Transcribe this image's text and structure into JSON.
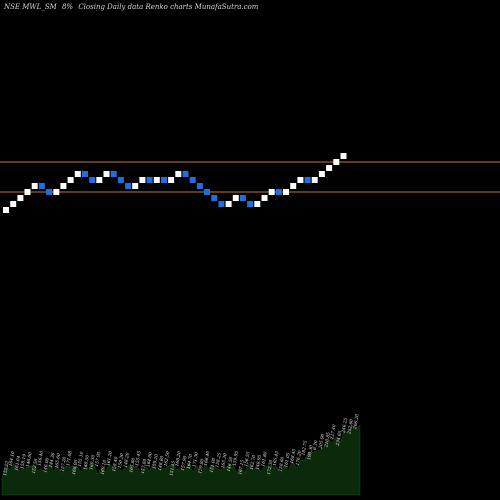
{
  "header": {
    "symbol": "NSE MWL_SM",
    "brick_size": "8%",
    "description": "Closing Daily data  Renko  charts MunafaSutra.com"
  },
  "colors": {
    "background": "#000000",
    "up_brick": "#ffffff",
    "down_brick": "#1f6fe0",
    "level_line": "#c8781e",
    "volume_fill": "#0b2a0b"
  },
  "chart_data": {
    "type": "renko",
    "direction_sequence": [
      "up",
      "up",
      "up",
      "up",
      "up",
      "down",
      "down",
      "up",
      "up",
      "up",
      "up",
      "down",
      "down",
      "up",
      "up",
      "down",
      "down",
      "down",
      "up",
      "up",
      "down",
      "up",
      "down",
      "up",
      "up",
      "down",
      "down",
      "down",
      "down",
      "down",
      "down",
      "up",
      "up",
      "down",
      "down",
      "up",
      "up",
      "up",
      "down",
      "up",
      "up",
      "up",
      "down",
      "up",
      "up",
      "up",
      "up",
      "up"
    ],
    "level_lines": [
      "upper",
      "lower"
    ],
    "volume_labels": [
      "152.22",
      "164.10",
      "161.04",
      "158.19",
      "146.00",
      "152.56",
      "156.40",
      "146.00",
      "144.36",
      "165.60",
      "157.20",
      "171.08",
      "168.00",
      "155.10",
      "148.50",
      "160.30",
      "157.95",
      "169.10",
      "161.20",
      "158.40",
      "150.30",
      "148.20",
      "165.80",
      "155.45",
      "157.80",
      "164.00",
      "159.20",
      "148.80",
      "162.50",
      "151.45",
      "168.20",
      "157.90",
      "164.70",
      "171.30",
      "159.80",
      "166.40",
      "151.00",
      "158.25",
      "165.30",
      "146.50",
      "159.95",
      "167.15",
      "156.55",
      "162.70",
      "148.95",
      "161.80",
      "172.30",
      "165.45",
      "158.60",
      "161.05",
      "168.45",
      "176.20",
      "182.75",
      "190.30",
      "6.30",
      "205.90",
      "210.85",
      "227.40",
      "234.65",
      "246.25",
      "252.60",
      "266.20"
    ]
  }
}
